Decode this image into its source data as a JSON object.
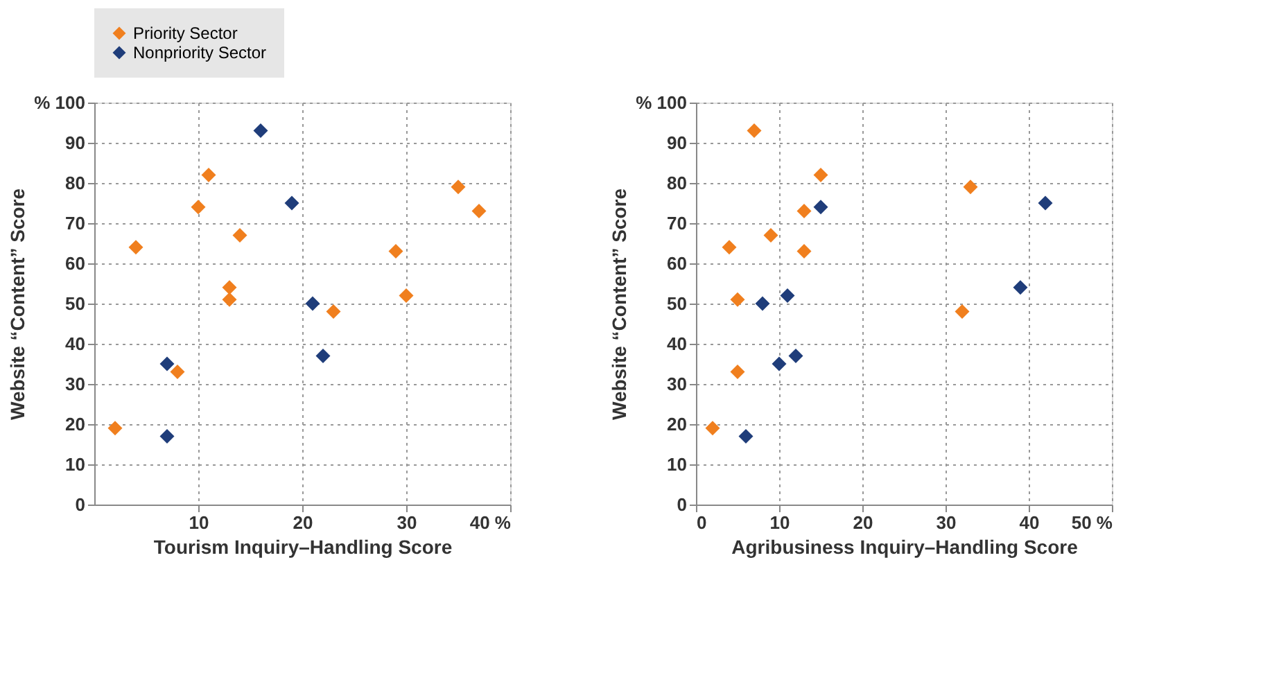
{
  "chart_data": [
    {
      "type": "scatter",
      "xlabel": "Tourism Inquiry–Handling Score",
      "ylabel": "Website “Content” Score",
      "xlim": [
        0,
        40
      ],
      "ylim": [
        0,
        100
      ],
      "xticks": [
        10,
        20,
        30,
        {
          "value": 40,
          "label": "40 %"
        }
      ],
      "yticks": [
        0,
        10,
        20,
        30,
        40,
        50,
        60,
        70,
        80,
        90,
        {
          "value": 100,
          "label": "% 100"
        }
      ],
      "grid": true,
      "marker": "diamond",
      "legend": "top",
      "series": [
        {
          "name": "Priority Sector",
          "color": "#f07f1e",
          "x": [
            2,
            4,
            8,
            10,
            11,
            13,
            13,
            14,
            23,
            29,
            30,
            35,
            37
          ],
          "values": [
            19,
            64,
            33,
            74,
            82,
            54,
            51,
            67,
            48,
            63,
            52,
            79,
            73
          ]
        },
        {
          "name": "Nonpriority Sector",
          "color": "#1f3d7a",
          "x": [
            7,
            7,
            16,
            19,
            21,
            22
          ],
          "values": [
            35,
            17,
            93,
            75,
            50,
            37
          ]
        }
      ]
    },
    {
      "type": "scatter",
      "xlabel": "Agribusiness Inquiry–Handling Score",
      "ylabel": "Website “Content” Score",
      "xlim": [
        0,
        50
      ],
      "ylim": [
        0,
        100
      ],
      "xticks": [
        0,
        10,
        20,
        30,
        40,
        {
          "value": 50,
          "label": "50 %"
        }
      ],
      "yticks": [
        0,
        10,
        20,
        30,
        40,
        50,
        60,
        70,
        80,
        90,
        {
          "value": 100,
          "label": "% 100"
        }
      ],
      "grid": true,
      "marker": "diamond",
      "series": [
        {
          "color": "#f07f1e",
          "x": [
            2,
            4,
            5,
            5,
            7,
            9,
            13,
            13,
            15,
            32,
            33
          ],
          "values": [
            19,
            64,
            51,
            33,
            93,
            67,
            73,
            63,
            82,
            48,
            79
          ]
        },
        {
          "color": "#1f3d7a",
          "x": [
            6,
            8,
            10,
            11,
            12,
            15,
            39,
            42
          ],
          "values": [
            17,
            50,
            35,
            52,
            37,
            74,
            54,
            75
          ]
        }
      ]
    }
  ]
}
